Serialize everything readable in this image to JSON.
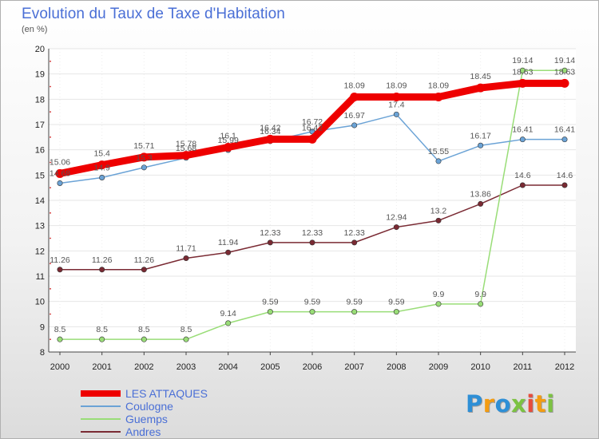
{
  "chart_data": {
    "type": "line",
    "title": "Evolution du Taux de Taxe d'Habitation",
    "subtitle": "(en %)",
    "xlabel": "",
    "ylabel": "",
    "ylim": [
      8,
      20
    ],
    "yticks": [
      "8",
      "9",
      "10",
      "11",
      "12",
      "13",
      "14",
      "15",
      "16",
      "17",
      "18",
      "19",
      "20"
    ],
    "x": [
      "2000",
      "2001",
      "2002",
      "2003",
      "2004",
      "2005",
      "2006",
      "2007",
      "2008",
      "2009",
      "2010",
      "2011",
      "2012"
    ],
    "legend_position": "bottom-left",
    "series": [
      {
        "name": "LES ATTAQUES",
        "color": "#ee0000",
        "values": [
          15.06,
          15.4,
          15.71,
          15.78,
          16.1,
          16.42,
          16.42,
          18.09,
          18.09,
          18.09,
          18.45,
          18.63,
          18.63
        ],
        "labels": [
          "15.06",
          "15.4",
          "15.71",
          "15.78",
          "16.1",
          "16.42",
          "16.42",
          "18.09",
          "18.09",
          "18.09",
          "18.45",
          "18.63",
          "18.63"
        ]
      },
      {
        "name": "Coulogne",
        "color": "#6ba3d6",
        "values": [
          14.68,
          14.9,
          15.3,
          15.68,
          15.99,
          16.34,
          16.72,
          16.97,
          17.4,
          15.55,
          16.17,
          16.41,
          16.41
        ],
        "labels": [
          "14.68",
          "14.9",
          "15.3",
          "15.68",
          "15.99",
          "16.34",
          "16.72",
          "16.97",
          "17.4",
          "15.55",
          "16.17",
          "16.41",
          "16.41"
        ]
      },
      {
        "name": "Guemps",
        "color": "#99dd77",
        "values": [
          8.5,
          8.5,
          8.5,
          8.5,
          9.14,
          9.59,
          9.59,
          9.59,
          9.59,
          9.9,
          9.9,
          19.14,
          19.14
        ],
        "labels": [
          "8.5",
          "8.5",
          "8.5",
          "8.5",
          "9.14",
          "9.59",
          "9.59",
          "9.59",
          "9.59",
          "9.9",
          "9.9",
          "19.14",
          "19.14"
        ]
      },
      {
        "name": "Andres",
        "color": "#7a2a33",
        "values": [
          11.26,
          11.26,
          11.26,
          11.71,
          11.94,
          12.33,
          12.33,
          12.33,
          12.94,
          13.2,
          13.86,
          14.6,
          14.6
        ],
        "labels": [
          "11.26",
          "11.26",
          "11.26",
          "11.71",
          "11.94",
          "12.33",
          "12.33",
          "12.33",
          "12.94",
          "13.2",
          "13.86",
          "14.6",
          "14.6"
        ]
      }
    ]
  },
  "branding": {
    "logo_letters": [
      "P",
      "r",
      "o",
      "x",
      "i",
      "t",
      "i"
    ],
    "logo_colors": [
      "#2e8fd6",
      "#f39c12",
      "#2e8fd6",
      "#7cc242",
      "#e74c3c",
      "#f39c12",
      "#7cc242"
    ]
  }
}
